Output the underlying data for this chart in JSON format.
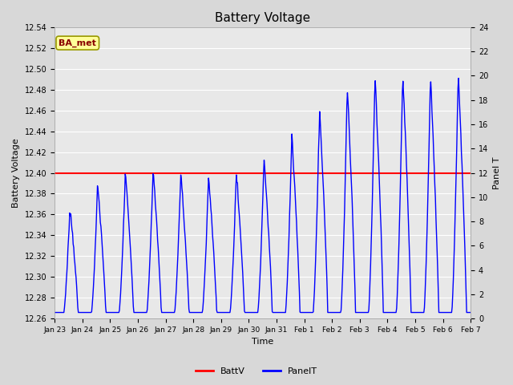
{
  "title": "Battery Voltage",
  "xlabel": "Time",
  "ylabel_left": "Battery Voltage",
  "ylabel_right": "Panel T",
  "annotation_text": "BA_met",
  "ylim_left": [
    12.26,
    12.54
  ],
  "ylim_right": [
    0,
    24
  ],
  "yticks_left": [
    12.26,
    12.28,
    12.3,
    12.32,
    12.34,
    12.36,
    12.38,
    12.4,
    12.42,
    12.44,
    12.46,
    12.48,
    12.5,
    12.52,
    12.54
  ],
  "yticks_right": [
    0,
    2,
    4,
    6,
    8,
    10,
    12,
    14,
    16,
    18,
    20,
    22,
    24
  ],
  "xtick_labels": [
    "Jan 23",
    "Jan 24",
    "Jan 25",
    "Jan 26",
    "Jan 27",
    "Jan 28",
    "Jan 29",
    "Jan 30",
    "Jan 31",
    "Feb 1",
    "Feb 2",
    "Feb 3",
    "Feb 4",
    "Feb 5",
    "Feb 6",
    "Feb 7"
  ],
  "battv_value": 12.4,
  "line_color_battv": "#ff0000",
  "line_color_panelt": "#0000ff",
  "fig_bg_color": "#d8d8d8",
  "plot_bg_color": "#e8e8e8",
  "grid_color": "#ffffff",
  "legend_battv": "BattV",
  "legend_panelt": "PanelT",
  "annotation_bg": "#ffff99",
  "annotation_edge": "#999900",
  "annotation_text_color": "#880000"
}
